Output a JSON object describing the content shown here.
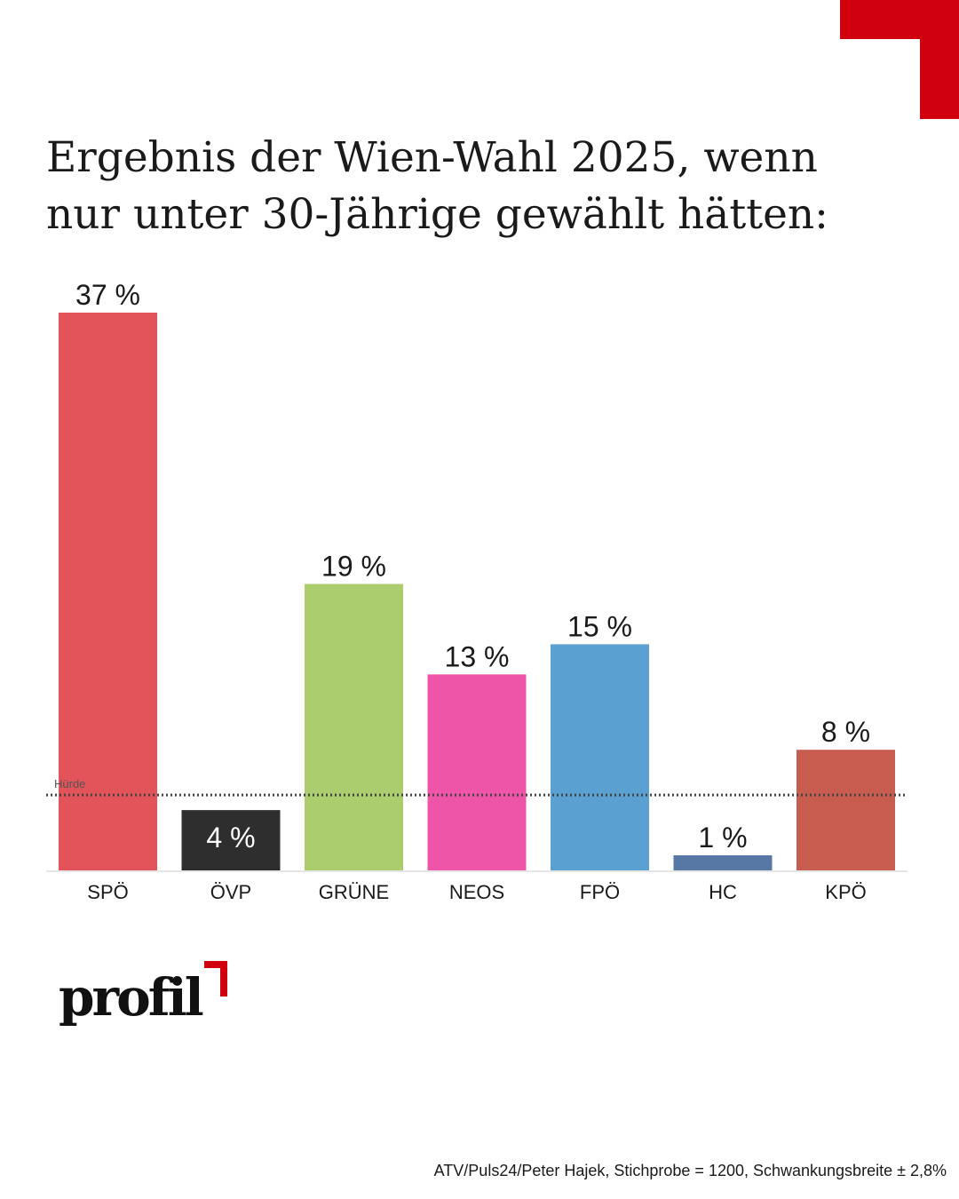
{
  "title_lines": [
    "Ergebnis der Wien-Wahl 2025, wenn",
    "nur unter 30-Jährige gewählt hätten:"
  ],
  "logo_text": "profil",
  "source": "ATV/Puls24/Peter Hajek, Stichprobe = 1200, Schwankungsbreite  ± 2,8%",
  "colors": {
    "accent": "#d0000f",
    "threshold_line": "#444444"
  },
  "chart_data": {
    "type": "bar",
    "title": "Ergebnis der Wien-Wahl 2025, wenn nur unter 30-Jährige gewählt hätten:",
    "xlabel": "",
    "ylabel": "",
    "categories": [
      "SPÖ",
      "ÖVP",
      "GRÜNE",
      "NEOS",
      "FPÖ",
      "HC",
      "KPÖ"
    ],
    "values": [
      37,
      4,
      19,
      13,
      15,
      1,
      8
    ],
    "value_labels": [
      "37 %",
      "4 %",
      "19 %",
      "13 %",
      "15 %",
      "1 %",
      "8 %"
    ],
    "colors": [
      "#e3545a",
      "#2e2e2e",
      "#abcd6e",
      "#ee55a8",
      "#5aa1d2",
      "#5778a4",
      "#c85c4f"
    ],
    "ylim": [
      0,
      37
    ],
    "threshold": {
      "label": "Hürde",
      "value": 5
    },
    "grid": false,
    "legend": "none"
  }
}
